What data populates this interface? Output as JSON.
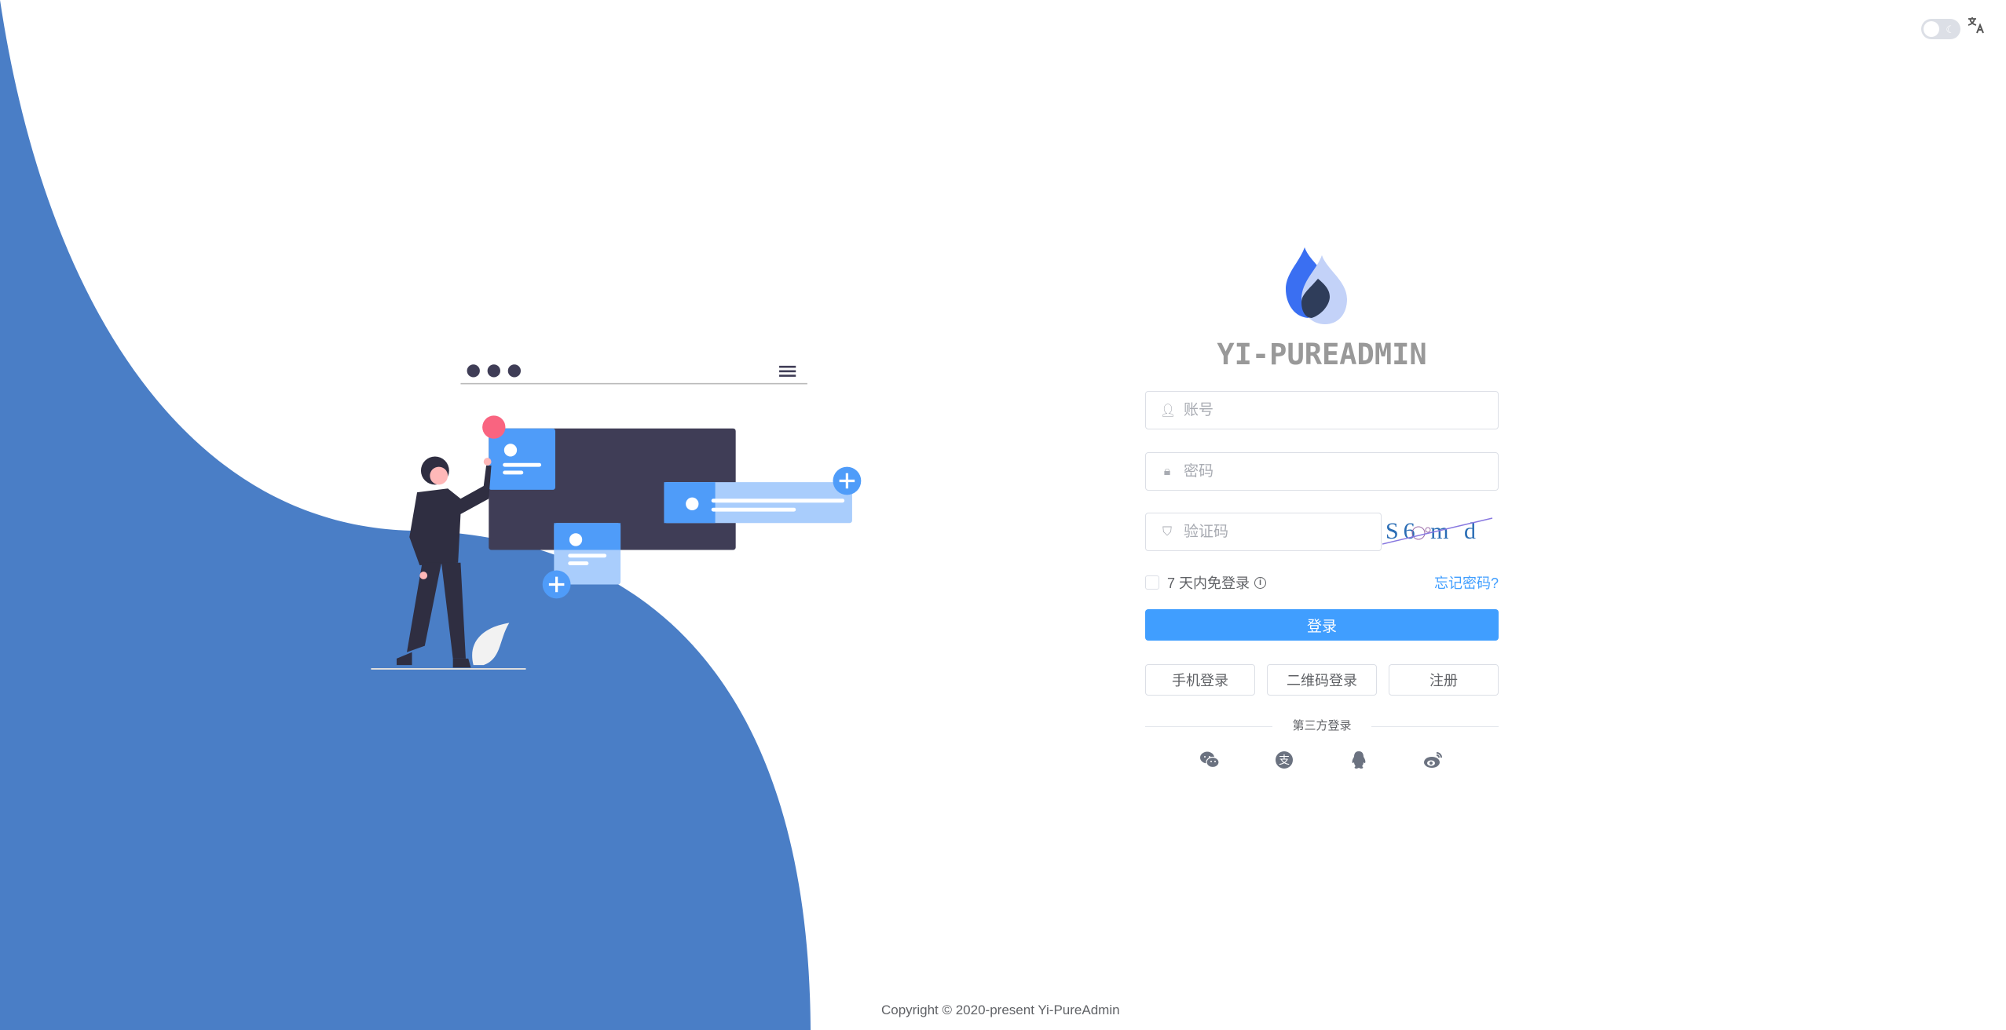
{
  "brand": {
    "title": "YI-PUREADMIN"
  },
  "topbar": {
    "theme_toggle": "dark-mode-toggle",
    "language_icon": "translate-icon"
  },
  "form": {
    "username_placeholder": "账号",
    "password_placeholder": "密码",
    "captcha_placeholder": "验证码",
    "captcha_text": "S6 m d",
    "remember_label": "7 天内免登录",
    "forgot_label": "忘记密码?",
    "login_label": "登录"
  },
  "other_logins": [
    "手机登录",
    "二维码登录",
    "注册"
  ],
  "third_party": {
    "label": "第三方登录",
    "icons": [
      "wechat-icon",
      "alipay-icon",
      "qq-icon",
      "weibo-icon"
    ]
  },
  "footer": {
    "copyright": "Copyright © 2020-present Yi-PureAdmin"
  },
  "colors": {
    "accent": "#409eff",
    "wave": "#4a7ec6"
  }
}
